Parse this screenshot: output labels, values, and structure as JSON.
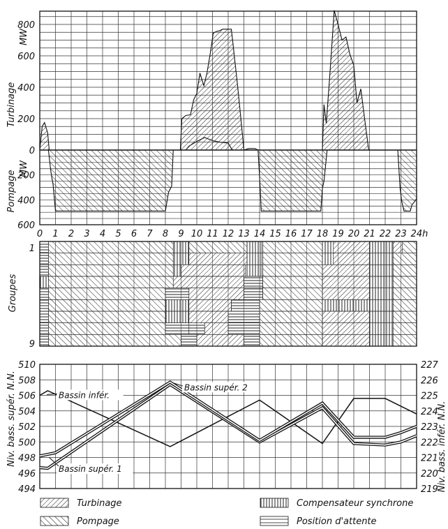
{
  "chart_data": [
    {
      "type": "area",
      "x_ticks": [
        "0",
        "1",
        "2",
        "3",
        "4",
        "5",
        "6",
        "7",
        "8",
        "9",
        "10",
        "11",
        "12",
        "13",
        "14",
        "15",
        "16",
        "17",
        "18",
        "19",
        "20",
        "21",
        "22",
        "23",
        "24h"
      ],
      "xlim": [
        0,
        24
      ],
      "upper_axis": {
        "label": "Turbinage",
        "unit": "MW",
        "ticks": [
          "800",
          "600",
          "400",
          "200",
          "0"
        ],
        "ylim": [
          0,
          850
        ]
      },
      "lower_axis": {
        "label": "Pompage",
        "unit": "MW",
        "ticks": [
          "200",
          "400",
          "600"
        ],
        "ylim": [
          0,
          600
        ]
      },
      "grid": true,
      "turbinage": [
        [
          0,
          0
        ],
        [
          0.15,
          150
        ],
        [
          0.3,
          175
        ],
        [
          0.5,
          110
        ],
        [
          0.6,
          0
        ],
        [
          8.95,
          0
        ],
        [
          9.05,
          200
        ],
        [
          9.3,
          220
        ],
        [
          9.6,
          225
        ],
        [
          9.8,
          320
        ],
        [
          10.0,
          360
        ],
        [
          10.2,
          490
        ],
        [
          10.45,
          410
        ],
        [
          10.65,
          490
        ],
        [
          10.85,
          610
        ],
        [
          11.05,
          745
        ],
        [
          11.25,
          755
        ],
        [
          11.45,
          760
        ],
        [
          11.65,
          770
        ],
        [
          12.2,
          770
        ],
        [
          12.3,
          680
        ],
        [
          12.6,
          410
        ],
        [
          12.85,
          160
        ],
        [
          13.0,
          0
        ],
        [
          18.0,
          0
        ],
        [
          18.1,
          290
        ],
        [
          18.25,
          170
        ],
        [
          18.5,
          520
        ],
        [
          18.75,
          890
        ],
        [
          19.0,
          800
        ],
        [
          19.25,
          700
        ],
        [
          19.5,
          720
        ],
        [
          19.75,
          610
        ],
        [
          20.0,
          540
        ],
        [
          20.2,
          300
        ],
        [
          20.45,
          390
        ],
        [
          20.7,
          190
        ],
        [
          20.95,
          0
        ]
      ],
      "turbinage_small_bumps": [
        [
          9.3,
          0
        ],
        [
          9.5,
          25
        ],
        [
          10.0,
          55
        ],
        [
          10.5,
          80
        ],
        [
          11.0,
          60
        ],
        [
          11.5,
          50
        ],
        [
          12.0,
          45
        ],
        [
          12.2,
          10
        ],
        [
          12.3,
          0
        ],
        [
          13.0,
          0
        ],
        [
          13.3,
          10
        ],
        [
          13.7,
          10
        ],
        [
          13.9,
          0
        ]
      ],
      "pompage": [
        [
          0.55,
          0
        ],
        [
          0.7,
          170
        ],
        [
          0.85,
          280
        ],
        [
          1.0,
          490
        ],
        [
          8.0,
          490
        ],
        [
          8.2,
          340
        ],
        [
          8.4,
          290
        ],
        [
          8.5,
          0
        ],
        [
          13.9,
          0
        ],
        [
          14.05,
          330
        ],
        [
          14.1,
          490
        ],
        [
          17.9,
          490
        ],
        [
          18.0,
          310
        ],
        [
          18.1,
          250
        ],
        [
          18.3,
          0
        ],
        [
          22.8,
          0
        ],
        [
          22.95,
          310
        ],
        [
          23.05,
          410
        ],
        [
          23.2,
          490
        ],
        [
          23.6,
          490
        ],
        [
          23.7,
          440
        ],
        [
          23.9,
          410
        ],
        [
          24.0,
          390
        ],
        [
          24.0,
          0
        ]
      ]
    },
    {
      "type": "heatmap",
      "ylabel": "Groupes",
      "row_labels": [
        "1",
        "9"
      ],
      "rows": 9,
      "legend": [
        {
          "key": "T",
          "label": "Turbinage"
        },
        {
          "key": "P",
          "label": "Pompage"
        },
        {
          "key": "C",
          "label": "Compensateur synchrone"
        },
        {
          "key": "A",
          "label": "Position d'attente"
        }
      ],
      "groups": [
        [
          [
            "A",
            0,
            0.55
          ],
          [
            "P",
            0.55,
            8.5
          ],
          [
            "C",
            8.5,
            9.5
          ],
          [
            "P",
            9.5,
            13.2
          ],
          [
            "C",
            13.2,
            14.2
          ],
          [
            "P",
            14.2,
            18
          ],
          [
            "C",
            18,
            18.7
          ],
          [
            "T",
            18.7,
            21
          ],
          [
            "C",
            21,
            22.5
          ],
          [
            "T",
            22.5,
            23.1
          ],
          [
            "P",
            23.1,
            24
          ]
        ],
        [
          [
            "A",
            0,
            0.55
          ],
          [
            "P",
            0.55,
            8.5
          ],
          [
            "C",
            8.5,
            9.5
          ],
          [
            "T",
            9.5,
            13.2
          ],
          [
            "C",
            13.2,
            14.2
          ],
          [
            "P",
            14.2,
            18
          ],
          [
            "C",
            18,
            18.7
          ],
          [
            "T",
            18.7,
            21
          ],
          [
            "C",
            21,
            22.5
          ],
          [
            "P",
            22.5,
            24
          ]
        ],
        [
          [
            "A",
            0,
            0.55
          ],
          [
            "P",
            0.55,
            8.5
          ],
          [
            "C",
            8.5,
            9
          ],
          [
            "T",
            9,
            13.1
          ],
          [
            "C",
            13.1,
            14.2
          ],
          [
            "P",
            14.2,
            18
          ],
          [
            "T",
            18,
            21
          ],
          [
            "C",
            21,
            22.5
          ],
          [
            "P",
            22.5,
            24
          ]
        ],
        [
          [
            "C",
            0,
            0.55
          ],
          [
            "P",
            0.55,
            8.5
          ],
          [
            "T",
            8.5,
            13
          ],
          [
            "A",
            13,
            14.2
          ],
          [
            "P",
            14.2,
            18
          ],
          [
            "T",
            18,
            21
          ],
          [
            "C",
            21,
            22.5
          ],
          [
            "P",
            22.5,
            24
          ]
        ],
        [
          [
            "A",
            0,
            0.55
          ],
          [
            "P",
            0.55,
            8
          ],
          [
            "A",
            8,
            9.5
          ],
          [
            "T",
            9.5,
            13
          ],
          [
            "A",
            13,
            14.2
          ],
          [
            "P",
            14.2,
            18
          ],
          [
            "T",
            18,
            21
          ],
          [
            "C",
            21,
            22.5
          ],
          [
            "P",
            22.5,
            24
          ]
        ],
        [
          [
            "A",
            0,
            0.55
          ],
          [
            "P",
            0.55,
            8
          ],
          [
            "C",
            8,
            9.5
          ],
          [
            "T",
            9.5,
            12.2
          ],
          [
            "A",
            12.2,
            14
          ],
          [
            "P",
            14,
            18
          ],
          [
            "C",
            18,
            21
          ],
          [
            "C",
            21,
            22.5
          ],
          [
            "P",
            22.5,
            24
          ]
        ],
        [
          [
            "A",
            0,
            0.55
          ],
          [
            "P",
            0.55,
            8
          ],
          [
            "C",
            8,
            9.5
          ],
          [
            "T",
            9.5,
            12
          ],
          [
            "A",
            12,
            14
          ],
          [
            "P",
            14,
            18
          ],
          [
            "T",
            18,
            21
          ],
          [
            "C",
            21,
            22.5
          ],
          [
            "P",
            22.5,
            24
          ]
        ],
        [
          [
            "A",
            0,
            0.55
          ],
          [
            "P",
            0.55,
            8
          ],
          [
            "A",
            8,
            9.5
          ],
          [
            "A",
            9.5,
            10.5
          ],
          [
            "T",
            10.5,
            12
          ],
          [
            "A",
            12,
            14
          ],
          [
            "P",
            14,
            18
          ],
          [
            "T",
            18,
            21
          ],
          [
            "C",
            21,
            22.5
          ],
          [
            "P",
            22.5,
            24
          ]
        ],
        [
          [
            "A",
            0,
            0.55
          ],
          [
            "P",
            0.55,
            9
          ],
          [
            "A",
            9,
            10
          ],
          [
            "T",
            10,
            13
          ],
          [
            "A",
            13,
            14
          ],
          [
            "P",
            14,
            18
          ],
          [
            "T",
            18,
            21
          ],
          [
            "C",
            21,
            22.5
          ],
          [
            "P",
            22.5,
            24
          ]
        ]
      ]
    },
    {
      "type": "line",
      "xlim": [
        0,
        24
      ],
      "left_axis": {
        "label": "Niv. bass. supér. N.N.",
        "ticks": [
          "510",
          "508",
          "506",
          "504",
          "502",
          "500",
          "498",
          "496",
          "494"
        ],
        "ylim": [
          494,
          510
        ]
      },
      "right_axis": {
        "label": "Niv. bass. infér. N.N.",
        "ticks": [
          "227",
          "226",
          "225",
          "224",
          "223",
          "222",
          "221",
          "220",
          "219"
        ],
        "ylim": [
          219,
          227
        ]
      },
      "grid": true,
      "series": [
        {
          "name": "Bassin infér.",
          "axis": "right",
          "style": "single",
          "x": [
            0,
            0.5,
            8.3,
            14,
            18,
            20,
            22,
            23,
            24
          ],
          "y": [
            225,
            225.3,
            221.7,
            224.7,
            221.9,
            224.8,
            224.8,
            224.3,
            223.8
          ]
        },
        {
          "name": "Bassin supér. 1",
          "axis": "left",
          "style": "double",
          "x": [
            0,
            0.5,
            8.3,
            14,
            18,
            20,
            22,
            23,
            24
          ],
          "y": [
            496.7,
            496.6,
            507.4,
            500.0,
            504.4,
            499.8,
            499.6,
            500.0,
            500.8
          ]
        },
        {
          "name": "Bassin supér. 2",
          "axis": "left",
          "style": "double",
          "x": [
            0,
            1,
            8.3,
            14,
            18,
            20,
            22,
            23,
            24
          ],
          "y": [
            498.2,
            498.6,
            507.7,
            500.2,
            505.0,
            500.6,
            500.6,
            501.2,
            502.0
          ]
        }
      ],
      "annotations": [
        {
          "text": "Bassin infér.",
          "x": 1.2,
          "y": 506.1
        },
        {
          "text": "Bassin supér. 2",
          "x": 9.2,
          "y": 507.1
        },
        {
          "text": "Bassin supér. 1",
          "x": 1.2,
          "y": 496.6
        }
      ]
    }
  ]
}
